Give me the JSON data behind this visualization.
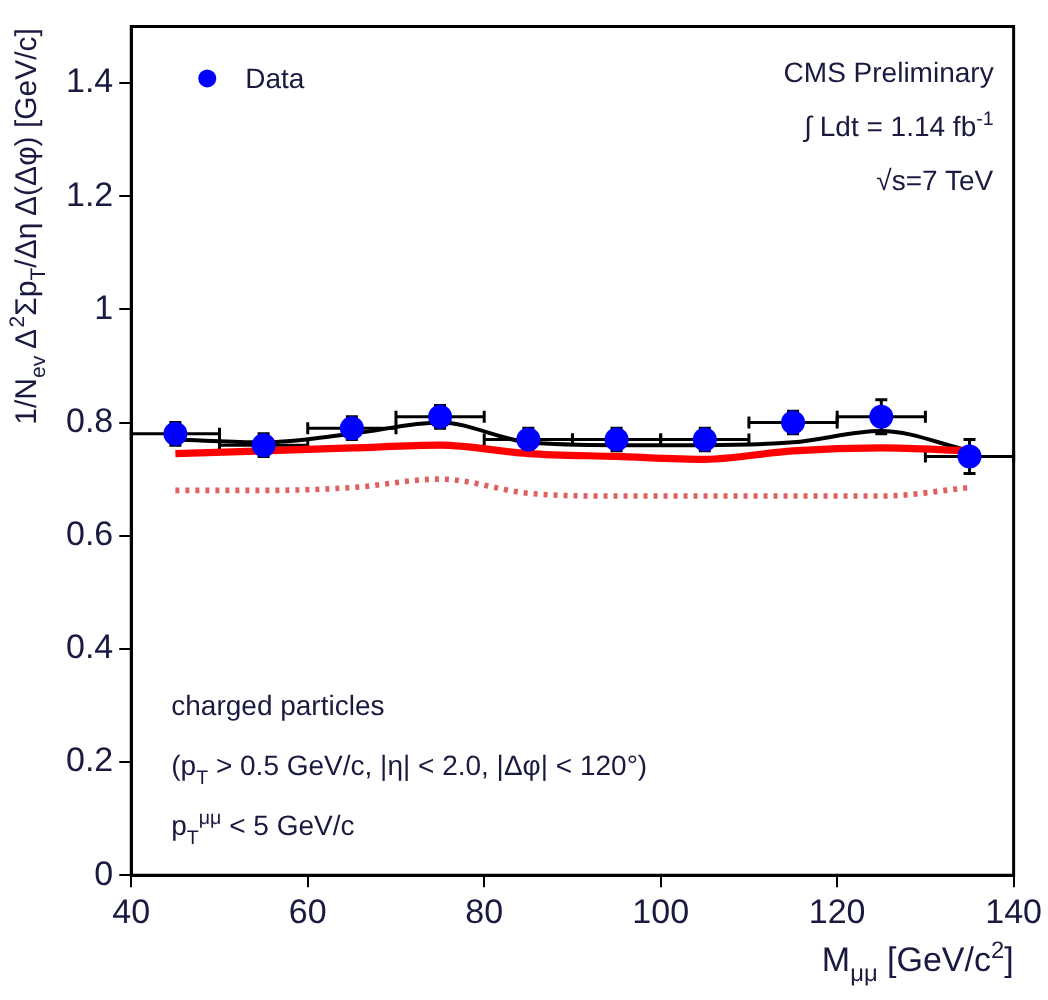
{
  "chart_data": {
    "type": "scatter",
    "xlabel": "M$_{μμ}$ [GeV/c$^{2}$]",
    "ylabel": "1/N$_{ev}$ Δ$^{2}$Σp$_{T}$/Δη Δ(Δφ) [GeV/c]",
    "x": [
      45,
      55,
      65,
      75,
      85,
      95,
      105,
      115,
      125,
      135
    ],
    "series": [
      {
        "name": "Data",
        "color": "#0000ff",
        "values": [
          0.78,
          0.76,
          0.79,
          0.81,
          0.77,
          0.77,
          0.77,
          0.8,
          0.81,
          0.74
        ],
        "errors": [
          0.02,
          0.02,
          0.02,
          0.02,
          0.02,
          0.02,
          0.02,
          0.02,
          0.03,
          0.03
        ],
        "xerrors": [
          5,
          5,
          5,
          5,
          5,
          5,
          5,
          5,
          5,
          5
        ]
      },
      {
        "type": "line",
        "color": "#ff0000",
        "line_style": "solid",
        "marker": "none",
        "values": [
          0.745,
          0.75,
          0.755,
          0.76,
          0.745,
          0.74,
          0.735,
          0.75,
          0.755,
          0.75
        ]
      },
      {
        "type": "line",
        "color": "#e06060",
        "line_style": "dotted",
        "marker": "none",
        "values": [
          0.68,
          0.68,
          0.685,
          0.7,
          0.675,
          0.67,
          0.67,
          0.67,
          0.67,
          0.685
        ]
      },
      {
        "type": "line",
        "color": "#000000",
        "line_style": "solid",
        "marker": "none",
        "values": [
          0.77,
          0.765,
          0.78,
          0.8,
          0.765,
          0.76,
          0.76,
          0.765,
          0.785,
          0.75
        ]
      }
    ],
    "xlim": [
      40,
      140
    ],
    "xticks": [
      40,
      60,
      80,
      100,
      120,
      140
    ],
    "ylim": [
      0,
      1.5
    ],
    "yticks": [
      0,
      0.2,
      0.4,
      0.6,
      0.8,
      1,
      1.2,
      1.4
    ],
    "grid": false,
    "legend": "top left",
    "marker": "circle",
    "annotations": [
      "CMS Preliminary",
      "∫ Ldt = 1.14 fb$^{-1}$",
      "√s=7 TeV",
      "charged particles",
      "(p$_{T}$ > 0.5 GeV/c, |η| < 2.0, |Δφ| < 120°)",
      "p$_{T}$$^{μμ}$ < 5 GeV/c"
    ]
  }
}
